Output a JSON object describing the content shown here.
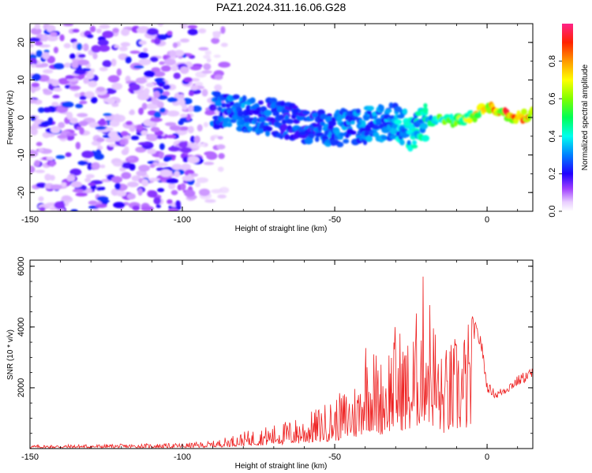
{
  "title": "PAZ1.2024.311.16.06.G28",
  "chart_data": [
    {
      "type": "heatmap",
      "xlabel": "Height of straight line (km)",
      "ylabel": "Frequency (Hz)",
      "xlim": [
        -150,
        15
      ],
      "ylim": [
        -25,
        25
      ],
      "xticks": [
        -150,
        -100,
        -50,
        0
      ],
      "yticks": [
        -20,
        -10,
        0,
        10,
        20
      ],
      "colorbar": {
        "label": "Normalized spectral amplitude",
        "range": [
          0,
          1
        ],
        "ticks": [
          "0.0",
          "0.2",
          "0.4",
          "0.6",
          "0.8"
        ],
        "tick_values": [
          0.0,
          0.2,
          0.4,
          0.6,
          0.8
        ],
        "colors": [
          "#ffffff",
          "#d8b4fe",
          "#8000ff",
          "#0000ff",
          "#00e5ff",
          "#00ff66",
          "#b0ff00",
          "#ffee00",
          "#ff8800",
          "#ff2200",
          "#ff2277"
        ]
      },
      "ridge": {
        "x": [
          -90,
          -80,
          -70,
          -60,
          -50,
          -40,
          -30,
          -25,
          -20,
          -15,
          -10,
          -5,
          0,
          5,
          10,
          15
        ],
        "y": [
          2,
          1,
          0,
          -2,
          -3,
          -2,
          -1,
          -4,
          -1,
          0,
          -1,
          0,
          3,
          1,
          0,
          1
        ],
        "amplitude": [
          0.3,
          0.35,
          0.3,
          0.3,
          0.35,
          0.35,
          0.4,
          0.45,
          0.5,
          0.6,
          0.7,
          0.75,
          0.85,
          0.95,
          0.95,
          0.9
        ]
      },
      "noise_region_x": [
        -150,
        -90
      ]
    },
    {
      "type": "line",
      "xlabel": "Height of straight line (km)",
      "ylabel": "SNR (10 * v/v)",
      "xlim": [
        -150,
        15
      ],
      "ylim": [
        0,
        6200
      ],
      "xticks": [
        -150,
        -100,
        -50,
        0
      ],
      "yticks": [
        2000,
        4000,
        6000
      ],
      "color": "#ee2222",
      "envelope": {
        "x": [
          -150,
          -120,
          -100,
          -90,
          -80,
          -70,
          -60,
          -50,
          -42,
          -40,
          -35,
          -30,
          -25,
          -21,
          -20,
          -15,
          -10,
          -5,
          -2,
          0,
          3,
          6,
          10,
          15
        ],
        "y": [
          120,
          150,
          180,
          250,
          550,
          800,
          1100,
          1700,
          2400,
          4000,
          3000,
          4200,
          3600,
          5800,
          6000,
          3200,
          3800,
          4400,
          3800,
          2200,
          1900,
          2100,
          2400,
          2700
        ]
      }
    }
  ]
}
